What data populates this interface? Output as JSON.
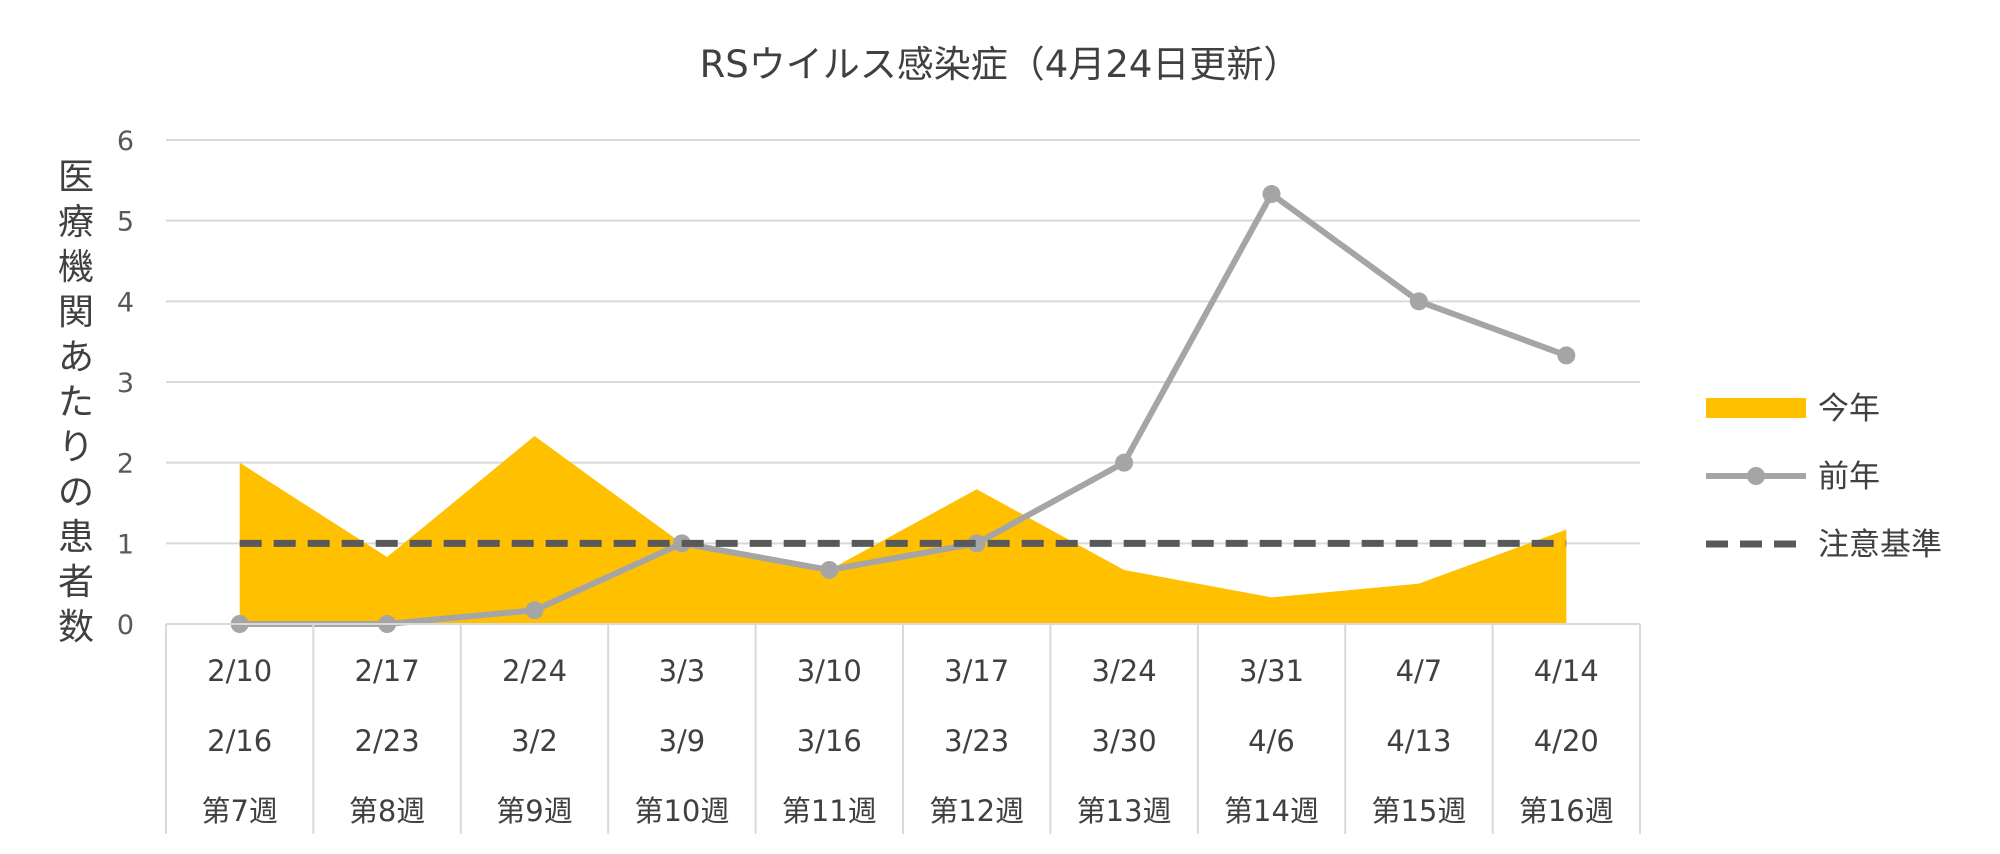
{
  "chart_data": {
    "type": "area",
    "title": "RSウイルス感染症（4月24日更新）",
    "ylabel": "医療機関あたりの患者数",
    "ylim": [
      0,
      6
    ],
    "yticks": [
      0,
      1,
      2,
      3,
      4,
      5,
      6
    ],
    "grid": true,
    "legend_position": "right",
    "categories": [
      {
        "start": "2/10",
        "end": "2/16",
        "week": "第7週"
      },
      {
        "start": "2/17",
        "end": "2/23",
        "week": "第8週"
      },
      {
        "start": "2/24",
        "end": "3/2",
        "week": "第9週"
      },
      {
        "start": "3/3",
        "end": "3/9",
        "week": "第10週"
      },
      {
        "start": "3/10",
        "end": "3/16",
        "week": "第11週"
      },
      {
        "start": "3/17",
        "end": "3/23",
        "week": "第12週"
      },
      {
        "start": "3/24",
        "end": "3/30",
        "week": "第13週"
      },
      {
        "start": "3/31",
        "end": "4/6",
        "week": "第14週"
      },
      {
        "start": "4/7",
        "end": "4/13",
        "week": "第15週"
      },
      {
        "start": "4/14",
        "end": "4/20",
        "week": "第16週"
      }
    ],
    "series": [
      {
        "name": "今年",
        "type": "area",
        "color": "#FFC000",
        "values": [
          2.0,
          0.83,
          2.33,
          1.0,
          0.67,
          1.67,
          0.67,
          0.33,
          0.5,
          1.17
        ]
      },
      {
        "name": "前年",
        "type": "line",
        "color": "#A5A5A5",
        "marker": "circle",
        "values": [
          0.0,
          0.0,
          0.17,
          1.0,
          0.67,
          1.0,
          2.0,
          5.33,
          4.0,
          3.33
        ]
      },
      {
        "name": "注意基準",
        "type": "line",
        "color": "#595959",
        "dash": "dashed",
        "values": [
          1,
          1,
          1,
          1,
          1,
          1,
          1,
          1,
          1,
          1
        ]
      }
    ]
  }
}
